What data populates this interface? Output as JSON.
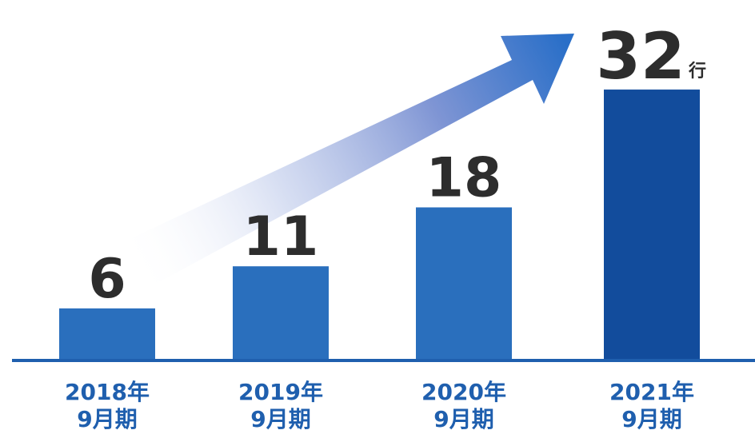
{
  "chart_data": {
    "type": "bar",
    "categories": [
      [
        "2018年",
        "9月期"
      ],
      [
        "2019年",
        "9月期"
      ],
      [
        "2020年",
        "9月期"
      ],
      [
        "2021年",
        "9月期"
      ]
    ],
    "values": [
      6,
      11,
      18,
      32
    ],
    "value_labels": [
      "6",
      "11",
      "18",
      "32"
    ],
    "unit_suffix": "行",
    "title": "",
    "xlabel": "",
    "ylabel": "",
    "ylim": [
      0,
      34
    ],
    "grid": false,
    "legend": "none",
    "colors": {
      "bar": "#2a6fbd",
      "bar_highlight": "#124c9c",
      "baseline": "#1f5fae",
      "category_text": "#1f5fae",
      "value_text": "#2d2d2d",
      "arrow_start": "#ffffff",
      "arrow_end": "#2a6fc8"
    },
    "decorations": [
      "trend-arrow"
    ]
  }
}
